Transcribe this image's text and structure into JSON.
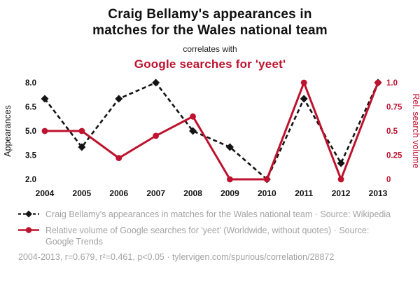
{
  "header": {
    "title": "Craig Bellamy's appearances in\nmatches for the Wales national team",
    "connector": "correlates with",
    "subtitle": "Google searches for 'yeet'"
  },
  "colors": {
    "accent_red": "#be122e",
    "series_black": "#141414",
    "legend_gray": "#a3a3a3"
  },
  "chart_data": {
    "type": "line",
    "title": "Craig Bellamy's appearances in matches for the Wales national team correlates with Google searches for 'yeet'",
    "x": [
      2004,
      2005,
      2006,
      2007,
      2008,
      2009,
      2010,
      2011,
      2012,
      2013
    ],
    "series": [
      {
        "name": "Craig Bellamy's appearances in matches for the Wales national team",
        "axis": "left",
        "color": "#141414",
        "style": "dashed-diamond",
        "values": [
          7,
          4,
          7,
          8,
          5,
          4,
          2,
          7,
          3,
          8
        ]
      },
      {
        "name": "Relative volume of Google searches for 'yeet'",
        "axis": "right",
        "color": "#be122e",
        "style": "solid-circle",
        "values": [
          0.5,
          0.5,
          0.22,
          0.45,
          0.65,
          0,
          0,
          1,
          0,
          1
        ]
      }
    ],
    "ylabel_left": "Appearances",
    "ylabel_right": "Rel. search volume",
    "y_left_range": [
      2,
      8
    ],
    "y_right_range": [
      0,
      1
    ],
    "y_left_tick_values": [
      2,
      3.5,
      5,
      6.5,
      8
    ],
    "y_left_ticks": [
      "2.0",
      "3.5",
      "5.0",
      "6.5",
      "8.0"
    ],
    "y_right_tick_values": [
      0,
      0.25,
      0.5,
      0.75,
      1
    ],
    "y_right_ticks": [
      "0",
      "0.25",
      "0.5",
      "0.75",
      "1.0"
    ],
    "grid": false,
    "legend_position": "bottom"
  },
  "legend": {
    "series1": "Craig Bellamy's appearances in matches for the Wales national team · Source: Wikipedia",
    "series2": "Relative volume of Google searches for 'yeet' (Worldwide, without quotes) · Source: Google Trends",
    "stats": "2004-2013, r=0.679, r²=0.461, p<0.05 · tylervigen.com/spurious/correlation/28872"
  }
}
